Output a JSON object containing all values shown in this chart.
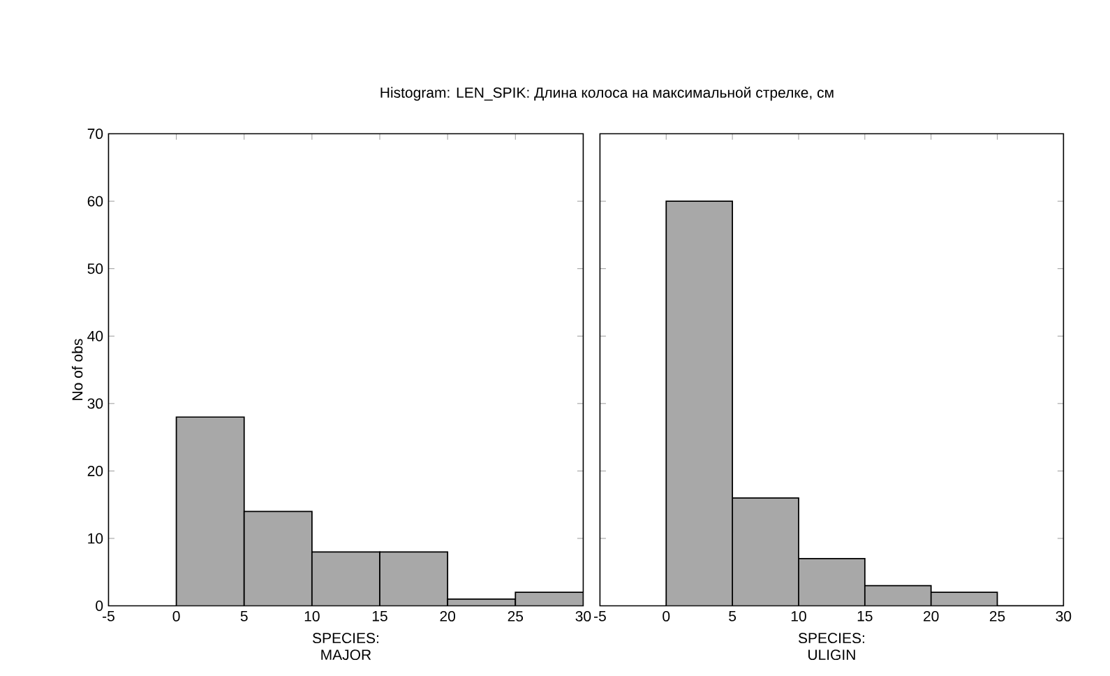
{
  "chart_data": [
    {
      "type": "histogram",
      "title": "Histogram: LEN_SPIK: Длина колоса на максимальной стрелке, см",
      "xlabel": "SPECIES: MAJOR",
      "ylabel": "No of obs",
      "color": "#a8a8a8",
      "bins": [
        0,
        5,
        10,
        15,
        20,
        25,
        30
      ],
      "values": [
        28,
        14,
        8,
        8,
        1,
        2
      ],
      "xlim": [
        -5,
        30
      ],
      "xticks": [
        -5,
        0,
        5,
        10,
        15,
        20,
        25,
        30
      ],
      "ylim": [
        0,
        70
      ],
      "yticks": [
        0,
        10,
        20,
        30,
        40,
        50,
        60,
        70
      ]
    },
    {
      "type": "histogram",
      "xlabel": "SPECIES: ULIGIN",
      "color": "#a8a8a8",
      "bins": [
        0,
        5,
        10,
        15,
        20,
        25,
        30
      ],
      "values": [
        60,
        16,
        7,
        3,
        2,
        0
      ],
      "xlim": [
        -5,
        30
      ],
      "xticks": [
        -5,
        0,
        5,
        10,
        15,
        20,
        25,
        30
      ],
      "ylim": [
        0,
        70
      ],
      "yticks": [
        0,
        10,
        20,
        30,
        40,
        50,
        60,
        70
      ],
      "tick_labels": "x"
    }
  ]
}
